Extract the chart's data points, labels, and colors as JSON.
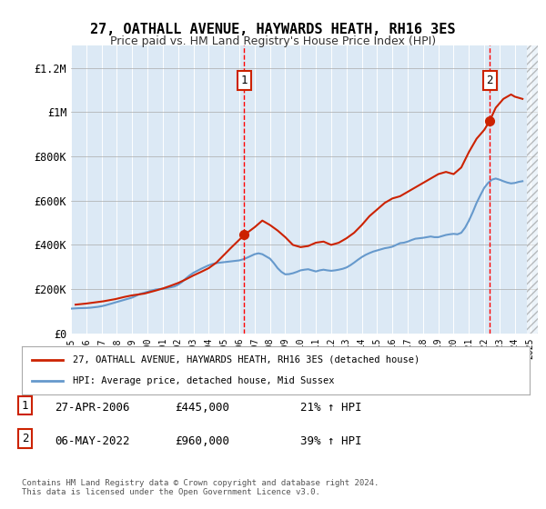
{
  "title": "27, OATHALL AVENUE, HAYWARDS HEATH, RH16 3ES",
  "subtitle": "Price paid vs. HM Land Registry's House Price Index (HPI)",
  "background_color": "#dce9f5",
  "plot_bg_color": "#dce9f5",
  "ylabel_ticks": [
    "£0",
    "£200K",
    "£400K",
    "£600K",
    "£800K",
    "£1M",
    "£1.2M"
  ],
  "ytick_values": [
    0,
    200000,
    400000,
    600000,
    800000,
    1000000,
    1200000
  ],
  "ylim": [
    0,
    1300000
  ],
  "xlim_start": 1995,
  "xlim_end": 2025.5,
  "x_ticks": [
    1995,
    1996,
    1997,
    1998,
    1999,
    2000,
    2001,
    2002,
    2003,
    2004,
    2005,
    2006,
    2007,
    2008,
    2009,
    2010,
    2011,
    2012,
    2013,
    2014,
    2015,
    2016,
    2017,
    2018,
    2019,
    2020,
    2021,
    2022,
    2023,
    2024,
    2025
  ],
  "hpi_color": "#6699cc",
  "price_color": "#cc2200",
  "marker1_date": 2006.32,
  "marker1_price": 445000,
  "marker2_date": 2022.35,
  "marker2_price": 960000,
  "legend_line1": "27, OATHALL AVENUE, HAYWARDS HEATH, RH16 3ES (detached house)",
  "legend_line2": "HPI: Average price, detached house, Mid Sussex",
  "note1_label": "1",
  "note1_date": "27-APR-2006",
  "note1_price": "£445,000",
  "note1_hpi": "21% ↑ HPI",
  "note2_label": "2",
  "note2_date": "06-MAY-2022",
  "note2_price": "£960,000",
  "note2_hpi": "39% ↑ HPI",
  "footer": "Contains HM Land Registry data © Crown copyright and database right 2024.\nThis data is licensed under the Open Government Licence v3.0.",
  "hpi_data_x": [
    1995.0,
    1995.25,
    1995.5,
    1995.75,
    1996.0,
    1996.25,
    1996.5,
    1996.75,
    1997.0,
    1997.25,
    1997.5,
    1997.75,
    1998.0,
    1998.25,
    1998.5,
    1998.75,
    1999.0,
    1999.25,
    1999.5,
    1999.75,
    2000.0,
    2000.25,
    2000.5,
    2000.75,
    2001.0,
    2001.25,
    2001.5,
    2001.75,
    2002.0,
    2002.25,
    2002.5,
    2002.75,
    2003.0,
    2003.25,
    2003.5,
    2003.75,
    2004.0,
    2004.25,
    2004.5,
    2004.75,
    2005.0,
    2005.25,
    2005.5,
    2005.75,
    2006.0,
    2006.25,
    2006.5,
    2006.75,
    2007.0,
    2007.25,
    2007.5,
    2007.75,
    2008.0,
    2008.25,
    2008.5,
    2008.75,
    2009.0,
    2009.25,
    2009.5,
    2009.75,
    2010.0,
    2010.25,
    2010.5,
    2010.75,
    2011.0,
    2011.25,
    2011.5,
    2011.75,
    2012.0,
    2012.25,
    2012.5,
    2012.75,
    2013.0,
    2013.25,
    2013.5,
    2013.75,
    2014.0,
    2014.25,
    2014.5,
    2014.75,
    2015.0,
    2015.25,
    2015.5,
    2015.75,
    2016.0,
    2016.25,
    2016.5,
    2016.75,
    2017.0,
    2017.25,
    2017.5,
    2017.75,
    2018.0,
    2018.25,
    2018.5,
    2018.75,
    2019.0,
    2019.25,
    2019.5,
    2019.75,
    2020.0,
    2020.25,
    2020.5,
    2020.75,
    2021.0,
    2021.25,
    2021.5,
    2021.75,
    2022.0,
    2022.25,
    2022.5,
    2022.75,
    2023.0,
    2023.25,
    2023.5,
    2023.75,
    2024.0,
    2024.25,
    2024.5
  ],
  "hpi_data_y": [
    112000,
    113000,
    114000,
    114500,
    115000,
    116000,
    118000,
    120000,
    123000,
    127000,
    132000,
    137000,
    142000,
    147000,
    152000,
    157000,
    162000,
    170000,
    178000,
    183000,
    188000,
    193000,
    198000,
    200000,
    202000,
    205000,
    208000,
    212000,
    220000,
    232000,
    248000,
    262000,
    274000,
    283000,
    292000,
    300000,
    308000,
    314000,
    318000,
    320000,
    322000,
    324000,
    326000,
    328000,
    330000,
    335000,
    342000,
    350000,
    358000,
    362000,
    358000,
    348000,
    338000,
    318000,
    295000,
    278000,
    267000,
    268000,
    272000,
    278000,
    285000,
    288000,
    290000,
    285000,
    280000,
    285000,
    288000,
    285000,
    283000,
    285000,
    288000,
    292000,
    298000,
    308000,
    320000,
    333000,
    345000,
    355000,
    363000,
    370000,
    375000,
    380000,
    385000,
    388000,
    392000,
    400000,
    408000,
    410000,
    415000,
    422000,
    428000,
    430000,
    432000,
    435000,
    438000,
    435000,
    435000,
    440000,
    445000,
    448000,
    450000,
    448000,
    455000,
    478000,
    510000,
    548000,
    590000,
    625000,
    658000,
    680000,
    695000,
    700000,
    695000,
    688000,
    682000,
    678000,
    680000,
    685000,
    688000
  ],
  "price_data_x": [
    1995.3,
    1996.0,
    1997.1,
    1997.9,
    1998.5,
    1999.0,
    1999.8,
    2000.5,
    2001.0,
    2001.5,
    2002.0,
    2002.5,
    2003.0,
    2003.5,
    2004.0,
    2004.5,
    2005.0,
    2005.5,
    2006.32,
    2007.0,
    2007.5,
    2008.0,
    2008.5,
    2009.0,
    2009.5,
    2010.0,
    2010.5,
    2011.0,
    2011.5,
    2012.0,
    2012.5,
    2013.0,
    2013.5,
    2014.0,
    2014.5,
    2015.0,
    2015.5,
    2016.0,
    2016.5,
    2017.0,
    2017.5,
    2018.0,
    2018.5,
    2019.0,
    2019.5,
    2020.0,
    2020.5,
    2021.0,
    2021.5,
    2022.0,
    2022.35,
    2022.75,
    2023.0,
    2023.25,
    2023.75,
    2024.0,
    2024.5
  ],
  "price_data_y": [
    130000,
    135000,
    145000,
    155000,
    165000,
    172000,
    180000,
    193000,
    203000,
    215000,
    228000,
    244000,
    262000,
    278000,
    295000,
    320000,
    355000,
    390000,
    445000,
    480000,
    510000,
    490000,
    465000,
    435000,
    400000,
    390000,
    395000,
    410000,
    415000,
    400000,
    410000,
    430000,
    455000,
    490000,
    530000,
    560000,
    590000,
    610000,
    620000,
    640000,
    660000,
    680000,
    700000,
    720000,
    730000,
    720000,
    750000,
    820000,
    880000,
    920000,
    960000,
    1020000,
    1040000,
    1060000,
    1080000,
    1070000,
    1060000
  ]
}
